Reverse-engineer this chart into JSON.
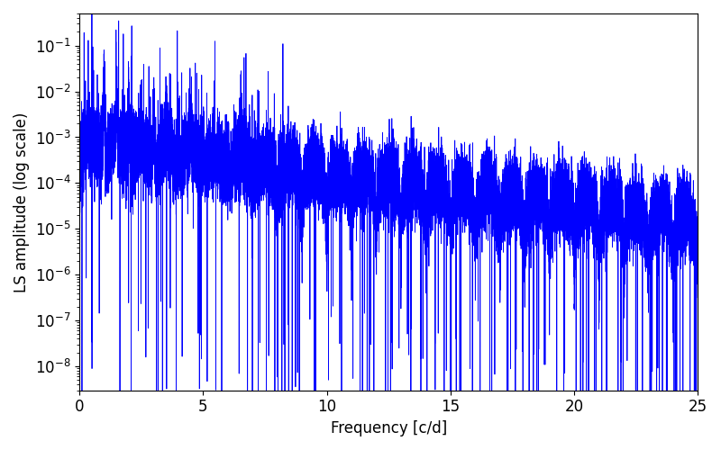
{
  "xlabel": "Frequency [c/d]",
  "ylabel": "LS amplitude (log scale)",
  "line_color": "blue",
  "line_width": 0.6,
  "xlim": [
    0,
    25
  ],
  "ylim": [
    3e-09,
    0.5
  ],
  "freq_max": 25.0,
  "n_points": 20000,
  "seed": 137,
  "background_color": "#ffffff",
  "tick_labelsize": 12,
  "label_fontsize": 12
}
